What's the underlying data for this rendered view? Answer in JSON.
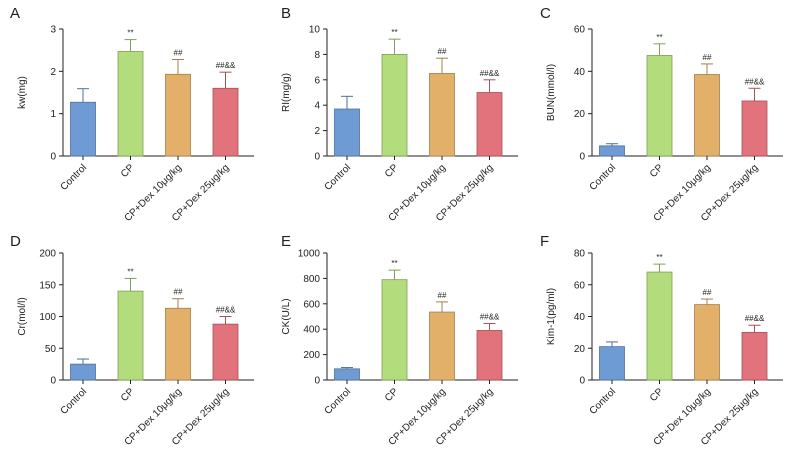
{
  "chart_data": [
    {
      "type": "bar",
      "panel_label": "A",
      "categories": [
        "Control",
        "CP",
        "CP+Dex 10μg/kg",
        "CP+Dex 25μg/kg"
      ],
      "values": [
        1.27,
        2.47,
        1.93,
        1.6
      ],
      "errors": [
        0.32,
        0.28,
        0.35,
        0.38
      ],
      "annotations": [
        "",
        "**",
        "##",
        "##&&"
      ],
      "ylabel": "kw(mg)",
      "ylim": [
        0,
        3
      ],
      "yticks": [
        "0",
        "1",
        "2",
        "3"
      ],
      "colors": [
        "#6e9bd4",
        "#b3dd7c",
        "#e3b06a",
        "#e2727b"
      ]
    },
    {
      "type": "bar",
      "panel_label": "B",
      "categories": [
        "Control",
        "CP",
        "CP+Dex 10μg/kg",
        "CP+Dex 25μg/kg"
      ],
      "values": [
        3.7,
        8.0,
        6.5,
        5.0
      ],
      "errors": [
        1.0,
        1.2,
        1.2,
        1.0
      ],
      "annotations": [
        "",
        "**",
        "##",
        "##&&"
      ],
      "ylabel": "RI(mg/g)",
      "ylim": [
        0,
        10
      ],
      "yticks": [
        "0",
        "2",
        "4",
        "6",
        "8",
        "10"
      ],
      "colors": [
        "#6e9bd4",
        "#b3dd7c",
        "#e3b06a",
        "#e2727b"
      ]
    },
    {
      "type": "bar",
      "panel_label": "C",
      "categories": [
        "Control",
        "CP",
        "CP+Dex 10μg/kg",
        "CP+Dex 25μg/kg"
      ],
      "values": [
        4.8,
        47.5,
        38.5,
        26.0
      ],
      "errors": [
        1.0,
        5.5,
        5.0,
        6.0
      ],
      "annotations": [
        "",
        "**",
        "##",
        "##&&"
      ],
      "ylabel": "BUN(mmol/l)",
      "ylim": [
        0,
        60
      ],
      "yticks": [
        "0",
        "20",
        "40",
        "60"
      ],
      "colors": [
        "#6e9bd4",
        "#b3dd7c",
        "#e3b06a",
        "#e2727b"
      ]
    },
    {
      "type": "bar",
      "panel_label": "D",
      "categories": [
        "Control",
        "CP",
        "CP+Dex 10μg/kg",
        "CP+Dex 25μg/kg"
      ],
      "values": [
        25,
        140,
        113,
        88
      ],
      "errors": [
        8,
        20,
        15,
        12
      ],
      "annotations": [
        "",
        "**",
        "##",
        "##&&"
      ],
      "ylabel": "Cr(mol/l)",
      "ylim": [
        0,
        200
      ],
      "yticks": [
        "0",
        "50",
        "100",
        "150",
        "200"
      ],
      "colors": [
        "#6e9bd4",
        "#b3dd7c",
        "#e3b06a",
        "#e2727b"
      ]
    },
    {
      "type": "bar",
      "panel_label": "E",
      "categories": [
        "Control",
        "CP",
        "CP+Dex 10μg/kg",
        "CP+Dex 25μg/kg"
      ],
      "values": [
        88,
        790,
        535,
        390
      ],
      "errors": [
        10,
        75,
        80,
        55
      ],
      "annotations": [
        "",
        "**",
        "##",
        "##&&"
      ],
      "ylabel": "CK(U/L)",
      "ylim": [
        0,
        1000
      ],
      "yticks": [
        "0",
        "200",
        "400",
        "600",
        "800",
        "1000"
      ],
      "colors": [
        "#6e9bd4",
        "#b3dd7c",
        "#e3b06a",
        "#e2727b"
      ]
    },
    {
      "type": "bar",
      "panel_label": "F",
      "categories": [
        "Control",
        "CP",
        "CP+Dex 10μg/kg",
        "CP+Dex 25μg/kg"
      ],
      "values": [
        21,
        68,
        47.5,
        30
      ],
      "errors": [
        3,
        5,
        3.5,
        4.5
      ],
      "annotations": [
        "",
        "**",
        "##",
        "##&&"
      ],
      "ylabel": "Kim-1(pg/ml)",
      "ylim": [
        0,
        80
      ],
      "yticks": [
        "0",
        "20",
        "40",
        "60",
        "80"
      ],
      "colors": [
        "#6e9bd4",
        "#b3dd7c",
        "#e3b06a",
        "#e2727b"
      ]
    }
  ]
}
